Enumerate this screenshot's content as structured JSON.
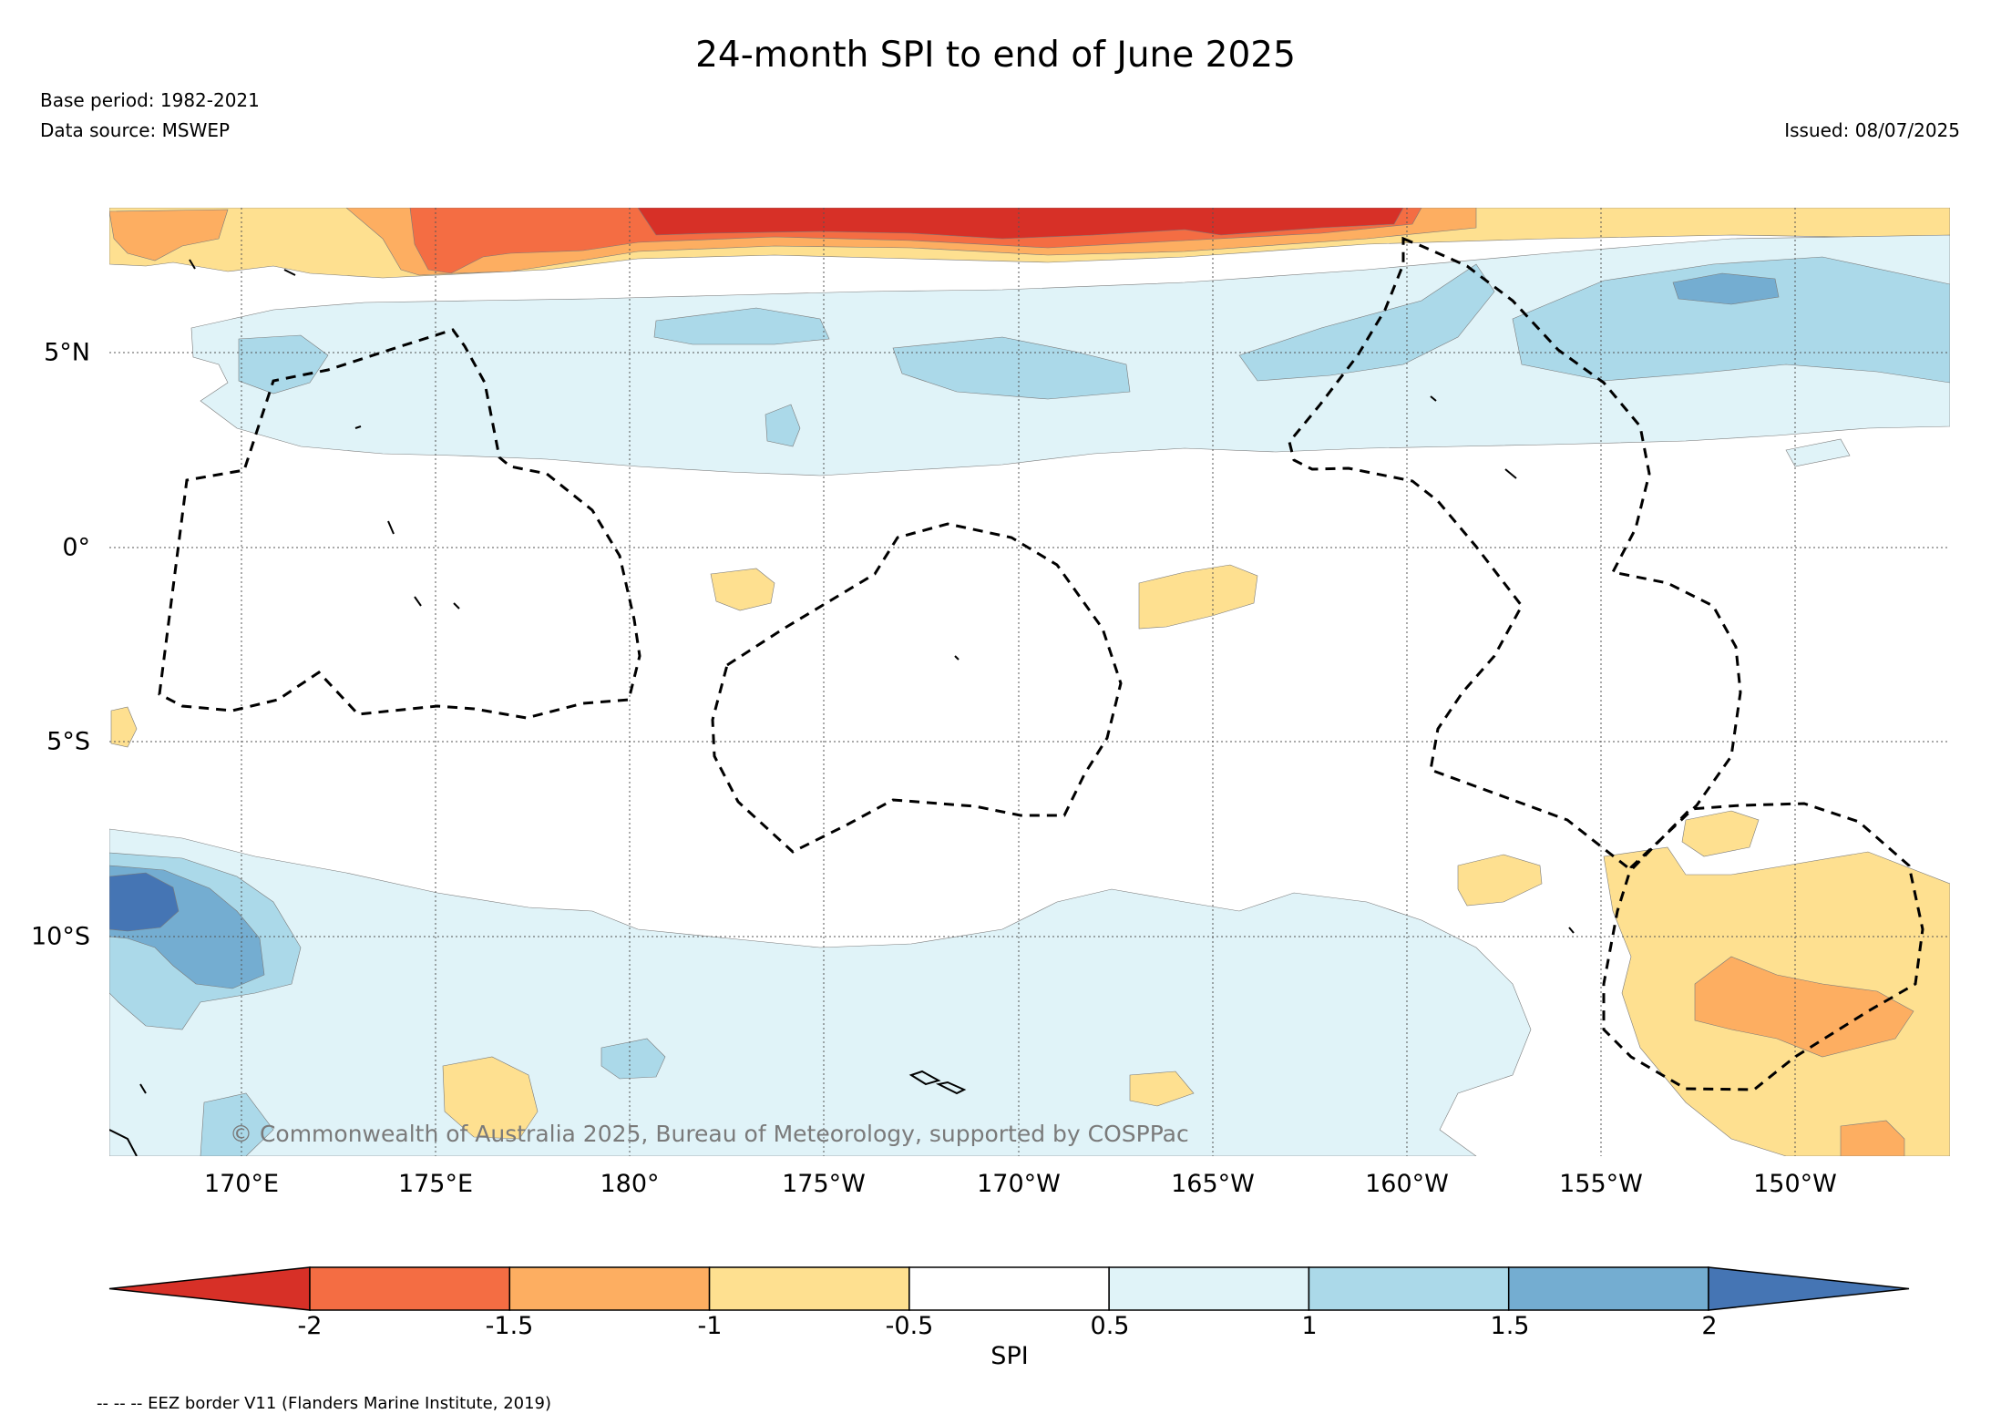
{
  "title": "24-month SPI to end of June 2025",
  "base_period": "Base period: 1982-2021",
  "data_source": "Data source: MSWEP",
  "issued": "Issued: 08/07/2025",
  "copyright": "© Commonwealth of Australia 2025, Bureau of Meteorology, supported by COSPPac",
  "footer": "-- -- -- EEZ border V11 (Flanders Marine Institute, 2019)",
  "map": {
    "lon_ticks": [
      "170°E",
      "175°E",
      "180°",
      "175°W",
      "170°W",
      "165°W",
      "160°W",
      "155°W",
      "150°W"
    ],
    "lat_ticks": [
      "5°N",
      "0°",
      "5°S",
      "10°S"
    ]
  },
  "colorbar": {
    "title": "SPI",
    "tick_labels": [
      "-2",
      "-1.5",
      "-1",
      "-0.5",
      "0.5",
      "1",
      "1.5",
      "2"
    ],
    "colors": [
      "#d73027",
      "#f46d43",
      "#fdae61",
      "#fee090",
      "#ffffff",
      "#e0f3f8",
      "#abd9e9",
      "#74add1",
      "#4575b4"
    ],
    "line_color": "#000000"
  }
}
